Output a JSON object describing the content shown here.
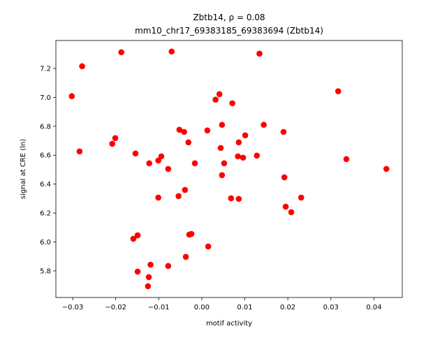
{
  "chart_data": {
    "type": "scatter",
    "title": "Zbtb14, ρ = 0.08",
    "subtitle": "mm10_chr17_69383185_69383694 (Zbtb14)",
    "x_label": "motif activity",
    "y_label": "signal at CRE (ln)",
    "color": "#ff0000",
    "x": [
      -0.0302,
      -0.0278,
      -0.0284,
      -0.0187,
      -0.007,
      0.0134,
      0.0317,
      0.0041,
      0.0032,
      0.0071,
      -0.0052,
      -0.0041,
      0.0013,
      0.0047,
      0.0144,
      0.019,
      0.0101,
      -0.0201,
      -0.0208,
      -0.0031,
      0.0086,
      0.0044,
      -0.0154,
      -0.0094,
      -0.0101,
      -0.0122,
      -0.0016,
      0.0052,
      -0.0078,
      0.0084,
      0.0096,
      0.0128,
      0.0336,
      0.0429,
      0.0047,
      0.0192,
      -0.0039,
      -0.0054,
      -0.0101,
      0.0068,
      0.0086,
      0.0231,
      0.0195,
      0.0208,
      -0.0029,
      -0.0024,
      -0.0149,
      -0.0159,
      0.0015,
      -0.0119,
      -0.0078,
      -0.0037,
      -0.0149,
      -0.0123,
      -0.0125
    ],
    "values": [
      7.008,
      7.215,
      6.626,
      7.312,
      7.317,
      7.302,
      7.042,
      7.022,
      6.984,
      6.959,
      6.776,
      6.761,
      6.771,
      6.81,
      6.81,
      6.761,
      6.737,
      6.718,
      6.679,
      6.689,
      6.689,
      6.65,
      6.612,
      6.592,
      6.563,
      6.544,
      6.544,
      6.544,
      6.505,
      6.592,
      6.583,
      6.597,
      6.573,
      6.505,
      6.462,
      6.447,
      6.36,
      6.317,
      6.307,
      6.302,
      6.298,
      6.307,
      6.244,
      6.206,
      6.051,
      6.056,
      6.046,
      6.022,
      5.969,
      5.843,
      5.834,
      5.897,
      5.795,
      5.757,
      5.694
    ],
    "xlim": [
      -0.0339,
      0.0466
    ],
    "ylim": [
      5.616,
      7.393
    ],
    "xticks": [
      {
        "value": -0.03,
        "label": "−0.03"
      },
      {
        "value": -0.02,
        "label": "−0.02"
      },
      {
        "value": -0.01,
        "label": "−0.01"
      },
      {
        "value": 0,
        "label": "0.00"
      },
      0.01,
      0.02,
      0.03,
      0.04
    ],
    "yticks": [
      5.8,
      {
        "value": 6,
        "label": "6.0"
      },
      6.2,
      6.4,
      6.6,
      6.8,
      {
        "value": 7,
        "label": "7.0"
      },
      7.2
    ],
    "grid": false
  }
}
